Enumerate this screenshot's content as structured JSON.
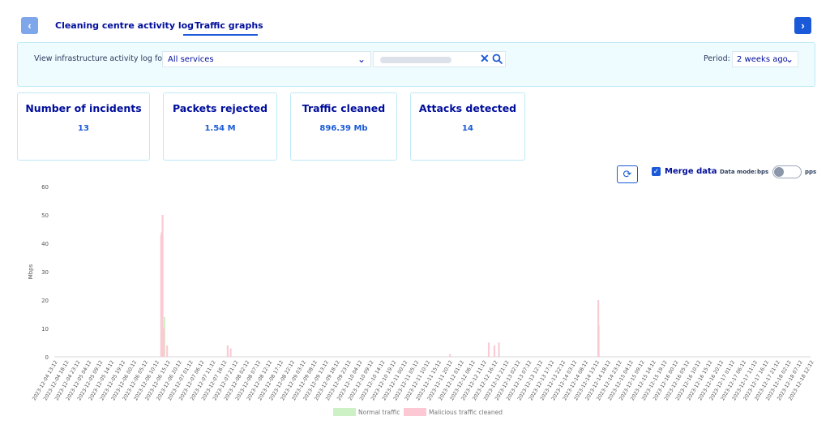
{
  "tabs": {
    "log": "Cleaning centre activity log",
    "graphs": "Traffic graphs"
  },
  "nav": {
    "prev_icon": "chevron-left",
    "next_icon": "chevron-right"
  },
  "filter": {
    "label": "View infrastructure activity log for:",
    "service_value": "All services",
    "period_label": "Period:",
    "period_value": "2 weeks ago"
  },
  "stats": [
    {
      "title": "Number of incidents",
      "value": "13"
    },
    {
      "title": "Packets rejected",
      "value": "1.54 M"
    },
    {
      "title": "Traffic cleaned",
      "value": "896.39 Mb"
    },
    {
      "title": "Attacks detected",
      "value": "14"
    }
  ],
  "controls": {
    "merge_label": "Merge data",
    "merge_checked": true,
    "data_mode_label": "Data mode:",
    "mode_left": "bps",
    "mode_right": "pps",
    "mode_selected": "bps"
  },
  "colors": {
    "normal": "#cdf0c5",
    "malicious": "#fbc8d3",
    "accent": "#1a5ad8"
  },
  "chart_data": {
    "type": "bar",
    "ylabel": "Mbps",
    "ylim": [
      0,
      60
    ],
    "yticks": [
      0,
      10,
      20,
      30,
      40,
      50,
      60
    ],
    "x_start": "2023-12-04T13:12",
    "x_end": "2023-12-18T12:12",
    "xticks": [
      "2023-12-04 13:12",
      "2023-12-04 18:12",
      "2023-12-04 23:12",
      "2023-12-05 04:12",
      "2023-12-05 09:12",
      "2023-12-05 14:12",
      "2023-12-05 19:12",
      "2023-12-06 00:12",
      "2023-12-06 05:12",
      "2023-12-06 10:12",
      "2023-12-06 15:12",
      "2023-12-06 20:12",
      "2023-12-07 01:12",
      "2023-12-07 06:12",
      "2023-12-07 11:12",
      "2023-12-07 16:12",
      "2023-12-07 21:12",
      "2023-12-08 02:12",
      "2023-12-08 07:12",
      "2023-12-08 12:12",
      "2023-12-08 17:12",
      "2023-12-08 22:12",
      "2023-12-09 03:12",
      "2023-12-09 08:12",
      "2023-12-09 13:12",
      "2023-12-09 18:12",
      "2023-12-09 23:12",
      "2023-12-10 04:12",
      "2023-12-10 09:12",
      "2023-12-10 14:12",
      "2023-12-10 19:12",
      "2023-12-11 00:12",
      "2023-12-11 05:12",
      "2023-12-11 10:12",
      "2023-12-11 15:12",
      "2023-12-11 20:12",
      "2023-12-12 01:12",
      "2023-12-12 06:12",
      "2023-12-12 11:12",
      "2023-12-12 16:12",
      "2023-12-12 21:12",
      "2023-12-13 02:12",
      "2023-12-13 07:12",
      "2023-12-13 12:12",
      "2023-12-13 17:12",
      "2023-12-13 22:12",
      "2023-12-14 03:12",
      "2023-12-14 08:12",
      "2023-12-14 13:12",
      "2023-12-14 18:12",
      "2023-12-14 23:12",
      "2023-12-15 04:12",
      "2023-12-15 09:12",
      "2023-12-15 14:12",
      "2023-12-15 19:12",
      "2023-12-16 00:12",
      "2023-12-16 05:12",
      "2023-12-16 10:12",
      "2023-12-16 15:12",
      "2023-12-16 20:12",
      "2023-12-17 01:12",
      "2023-12-17 06:12",
      "2023-12-17 11:12",
      "2023-12-17 16:12",
      "2023-12-17 21:12",
      "2023-12-18 02:12",
      "2023-12-18 07:12",
      "2023-12-18 12:12"
    ],
    "series": [
      {
        "name": "Normal traffic",
        "color": "#cdf0c5",
        "points": [
          [
            "2023-12-06T13:30",
            9
          ],
          [
            "2023-12-06T14:00",
            14
          ]
        ]
      },
      {
        "name": "Malicious traffic cleaned",
        "color": "#fbc8d3",
        "points": [
          [
            "2023-12-06T12:30",
            43
          ],
          [
            "2023-12-06T12:50",
            44
          ],
          [
            "2023-12-06T13:10",
            50
          ],
          [
            "2023-12-06T13:40",
            10
          ],
          [
            "2023-12-06T15:10",
            4
          ],
          [
            "2023-12-07T18:00",
            4
          ],
          [
            "2023-12-07T19:20",
            3
          ],
          [
            "2023-12-11T20:30",
            1
          ],
          [
            "2023-12-12T13:40",
            5
          ],
          [
            "2023-12-12T16:10",
            4
          ],
          [
            "2023-12-12T18:10",
            5
          ],
          [
            "2023-12-14T14:10",
            20
          ],
          [
            "2023-12-14T14:20",
            11
          ]
        ]
      }
    ],
    "legend_position": "bottom"
  }
}
